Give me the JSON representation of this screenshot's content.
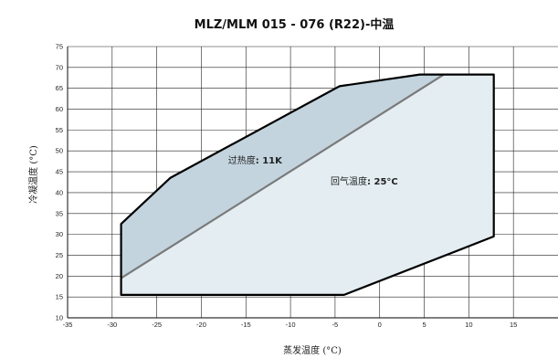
{
  "chart_data": {
    "type": "area",
    "title": "MLZ/MLM 015 - 076 (R22)-中温",
    "xlabel": "蒸发温度 (°C)",
    "ylabel": "冷凝温度 (°C)",
    "xlim": [
      -35,
      20
    ],
    "ylim": [
      10,
      75
    ],
    "xticks": [
      -35,
      -30,
      -25,
      -20,
      -15,
      -10,
      -5,
      0,
      5,
      10,
      15
    ],
    "yticks": [
      10,
      15,
      20,
      25,
      30,
      35,
      40,
      45,
      50,
      55,
      60,
      65,
      70,
      75
    ],
    "grid": true,
    "series": [
      {
        "name": "回气温度: 25°C",
        "color": "#e3edf2",
        "points": [
          [
            -29,
            15.5
          ],
          [
            -4,
            15.5
          ],
          [
            12.8,
            29.5
          ],
          [
            12.8,
            68.3
          ],
          [
            4.5,
            68.3
          ],
          [
            -29,
            19.5
          ]
        ]
      },
      {
        "name": "过热度: 11K",
        "color": "#c3d4de",
        "points": [
          [
            -29,
            19.5
          ],
          [
            7.2,
            68.3
          ],
          [
            4.5,
            68.3
          ],
          [
            -4.5,
            65.5
          ],
          [
            -23.5,
            43.5
          ],
          [
            -29,
            32.5
          ]
        ]
      }
    ],
    "envelope_outline": [
      [
        -29,
        15.5
      ],
      [
        -4,
        15.5
      ],
      [
        12.8,
        29.5
      ],
      [
        12.8,
        68.3
      ],
      [
        4.5,
        68.3
      ],
      [
        -4.5,
        65.5
      ],
      [
        -23.5,
        43.5
      ],
      [
        -29,
        32.5
      ]
    ],
    "divider_line": [
      [
        -29,
        19.5
      ],
      [
        7.2,
        68.3
      ]
    ],
    "annotations": [
      {
        "prefix": "过热度",
        "value": ": 11K",
        "x": -17,
        "y": 47
      },
      {
        "prefix": "回气温度",
        "value": ": 25°C",
        "x": -5.5,
        "y": 42
      }
    ]
  }
}
